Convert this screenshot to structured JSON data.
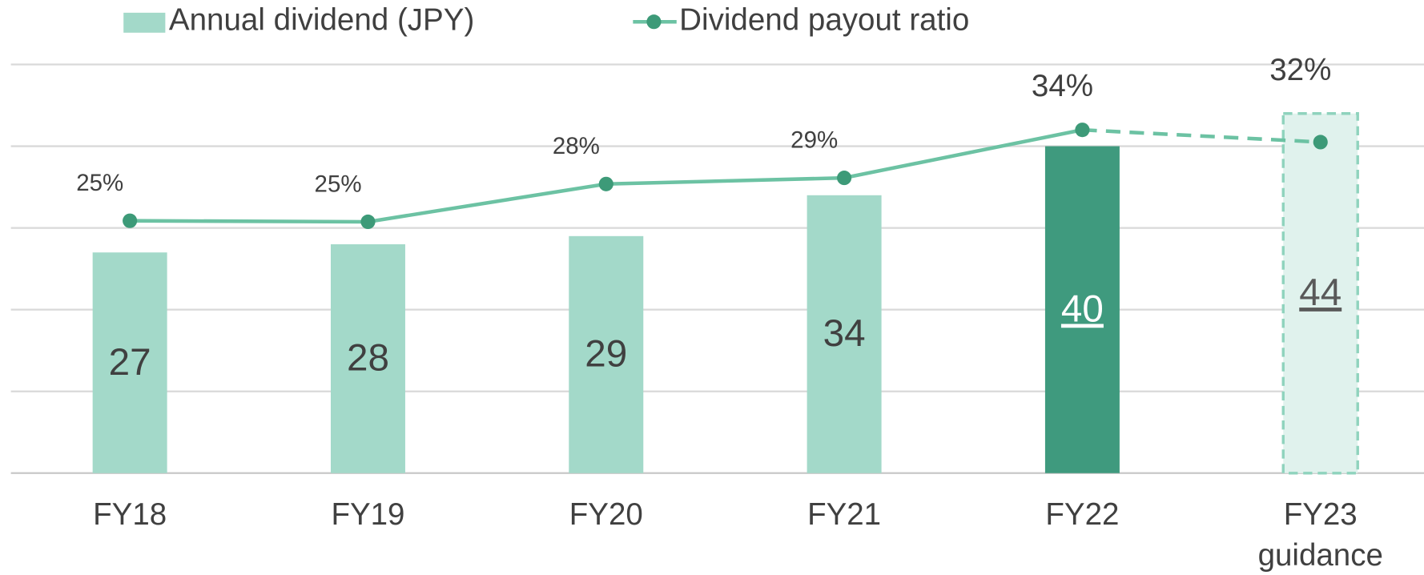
{
  "chart_data": {
    "type": "bar",
    "categories": [
      "FY18",
      "FY19",
      "FY20",
      "FY21",
      "FY22",
      "FY23\nguidance"
    ],
    "series": [
      {
        "name": "Annual dividend (JPY)",
        "type": "bar",
        "color": "#a3d9c9",
        "colors": [
          "#a3d9c9",
          "#a3d9c9",
          "#a3d9c9",
          "#a3d9c9",
          "#3f9a7e",
          "#e0f2ed"
        ],
        "dashed": [
          false,
          false,
          false,
          false,
          false,
          true
        ],
        "values": [
          27,
          28,
          29,
          34,
          40,
          44
        ]
      },
      {
        "name": "Dividend payout ratio",
        "type": "line",
        "axis": "y2",
        "color": "#6cc2a3",
        "marker_color": "#3d9a78",
        "dashed_from": 4,
        "values": [
          24.7,
          24.6,
          28.3,
          28.9,
          33.6,
          32.4
        ],
        "value_labels": [
          "25%",
          "25%",
          "28%",
          "29%",
          "34%",
          "32%"
        ]
      }
    ],
    "ylim": [
      0,
      50
    ],
    "yticks": [
      0,
      10,
      20,
      30,
      40,
      50
    ],
    "y2lim": [
      0,
      40
    ],
    "grid": true,
    "legend": "top"
  }
}
